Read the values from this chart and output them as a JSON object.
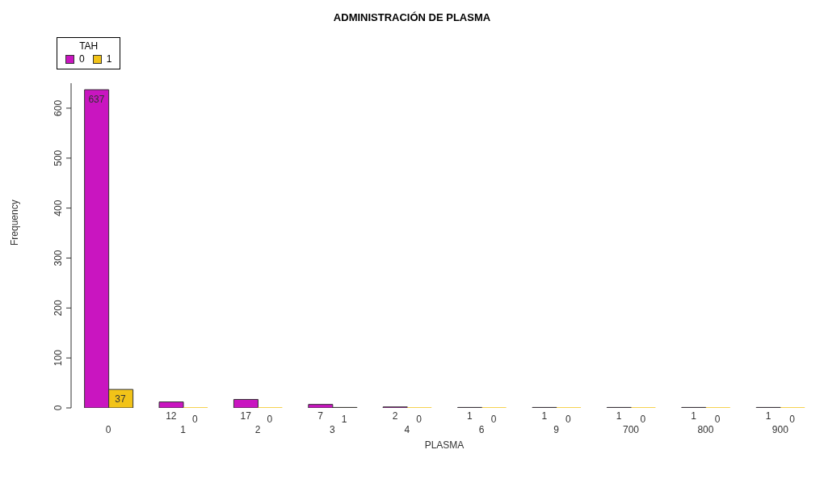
{
  "chart_data": {
    "type": "bar",
    "title": "ADMINISTRACIÓN DE PLASMA",
    "xlabel": "PLASMA",
    "ylabel": "Frequency",
    "legend_title": "TAH",
    "legend": "top left",
    "categories": [
      "0",
      "1",
      "2",
      "3",
      "4",
      "6",
      "9",
      "700",
      "800",
      "900"
    ],
    "series": [
      {
        "name": "0",
        "color": "#c915c0",
        "values": [
          637,
          12,
          17,
          7,
          2,
          1,
          1,
          1,
          1,
          1
        ]
      },
      {
        "name": "1",
        "color": "#f2c318",
        "values": [
          37,
          0,
          0,
          1,
          0,
          0,
          0,
          0,
          0,
          0
        ]
      }
    ],
    "ylim": [
      0,
      650
    ],
    "yticks": [
      0,
      100,
      200,
      300,
      400,
      500,
      600
    ],
    "grid": false,
    "data_labels": true
  }
}
